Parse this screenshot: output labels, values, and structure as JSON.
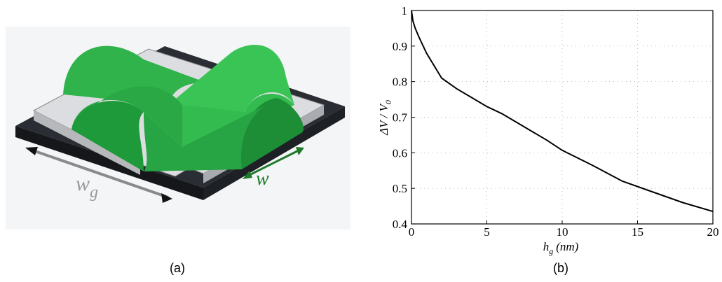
{
  "panel_a": {
    "wg_label": "w",
    "wg_subscript": "g",
    "w_label": "w",
    "caption": "(a)"
  },
  "chart_data": {
    "type": "line",
    "caption": "(b)",
    "x_label": {
      "text": "h",
      "subscript": "g",
      "unit": "(nm)"
    },
    "y_label": {
      "text": "ΔV / V",
      "subscript": "0"
    },
    "x": [
      0,
      0.1,
      0.25,
      0.5,
      1,
      1.5,
      2,
      3,
      4,
      5,
      6,
      7,
      8,
      9,
      10,
      12,
      14,
      16,
      18,
      20
    ],
    "series": [
      {
        "color": "#000000",
        "values": [
          1,
          0.97,
          0.95,
          0.925,
          0.88,
          0.845,
          0.81,
          0.78,
          0.755,
          0.73,
          0.71,
          0.685,
          0.66,
          0.635,
          0.607,
          0.565,
          0.52,
          0.49,
          0.46,
          0.435
        ]
      }
    ],
    "xlim": [
      0,
      20
    ],
    "ylim": [
      0.4,
      1
    ],
    "xticks": [
      0,
      5,
      10,
      15,
      20
    ],
    "yticks": [
      0.4,
      0.5,
      0.6,
      0.7,
      0.8,
      0.9,
      1
    ],
    "grid": true
  }
}
